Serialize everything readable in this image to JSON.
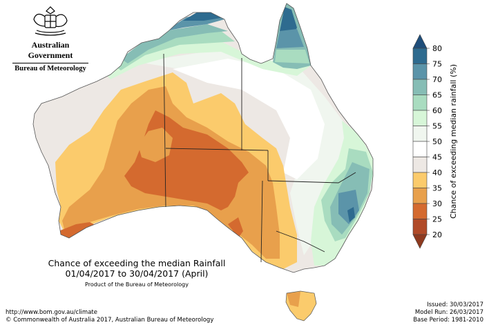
{
  "header": {
    "government": "Australian Government",
    "bureau": "Bureau of Meteorology"
  },
  "title": {
    "line1": "Chance of exceeding the median Rainfall",
    "line2": "01/04/2017 to 30/04/2017 (April)",
    "product": "Product of the Bureau of Meteorology"
  },
  "footer": {
    "url": "http://www.bom.gov.au/climate",
    "copyright": "© Commonwealth of Australia 2017, Australian Bureau of Meteorology",
    "issued": "Issued: 30/03/2017",
    "model_run": "Model Run: 26/03/2017",
    "base_period": "Base Period: 1981-2010"
  },
  "legend": {
    "title": "Chance of exceeding median rainfall (%)",
    "ticks": [
      "80",
      "75",
      "70",
      "65",
      "60",
      "55",
      "50",
      "45",
      "40",
      "35",
      "30",
      "25",
      "20"
    ],
    "colors": [
      "#2e6b8f",
      "#5b94a9",
      "#86bdb5",
      "#a9dcc0",
      "#d7f6d8",
      "#f0f6ef",
      "#ffffff",
      "#ede8e4",
      "#fbcb6c",
      "#e8a04c",
      "#d46a2f",
      "#b04a28"
    ],
    "arrow_top_color": "#1f4e7a",
    "arrow_bottom_color": "#8e3a1f"
  },
  "map": {
    "region": "Australia",
    "colors": {
      "ocean": "#ffffff",
      "land_neutral": "#ede8e4",
      "dry_40": "#fbcb6c",
      "dry_35": "#e8a04c",
      "dry_30": "#d46a2f",
      "wet_55": "#f0f6ef",
      "wet_60": "#d7f6d8",
      "wet_65": "#a9dcc0",
      "wet_70": "#86bdb5",
      "wet_75": "#5b94a9",
      "wet_80": "#2e6b8f"
    }
  }
}
